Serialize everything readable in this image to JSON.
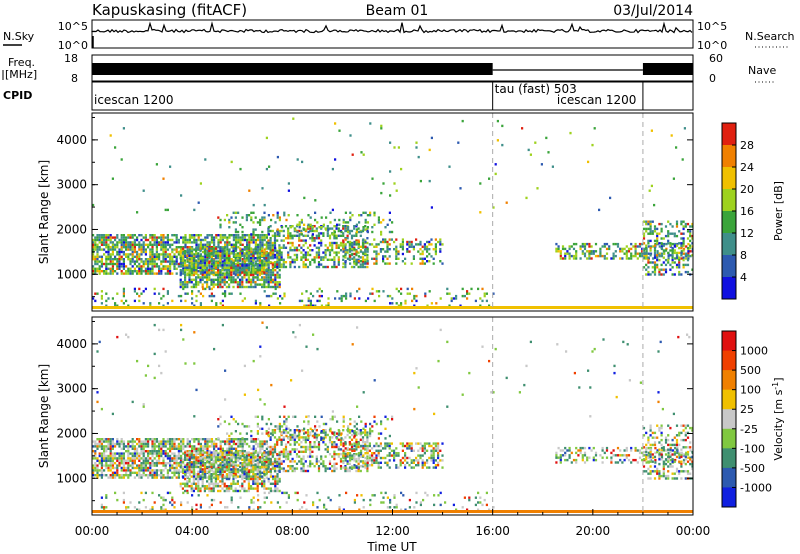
{
  "header": {
    "station": "Kapuskasing (fitACF)",
    "beam": "Beam 01",
    "date": "03/Jul/2014"
  },
  "status_panels": {
    "nsky_label": "N.Sky",
    "nsky_ticks": [
      "10^5",
      "10^0"
    ],
    "nsearch_label": "N.Search",
    "nsearch_ticks": [
      "10^5",
      "10^0"
    ],
    "freq_label_1": "Freq.",
    "freq_label_2": "[MHz]",
    "freq_ticks": [
      "18",
      "8"
    ],
    "nave_label": "Nave",
    "nave_ticks": [
      "60",
      "0"
    ],
    "cpid_label": "CPID",
    "cpid_segments": [
      {
        "label": "icescan 1200",
        "start_hour": 0,
        "end_hour": 16
      },
      {
        "label": "tau (fast) 503",
        "start_hour": 16,
        "end_hour": 22
      },
      {
        "label": "icescan 1200",
        "start_hour": 22,
        "end_hour": 24
      }
    ]
  },
  "chart_data": [
    {
      "type": "heatmap",
      "name": "power",
      "ylabel": "Slant Range [km]",
      "xlabel": "",
      "xlim": [
        0,
        24
      ],
      "ylim": [
        180,
        4600
      ],
      "yticks": [
        "1000",
        "2000",
        "3000",
        "4000"
      ],
      "colorbar": {
        "label": "Power [dB]",
        "ticks": [
          "4",
          "8",
          "12",
          "16",
          "20",
          "24",
          "28"
        ],
        "colors": [
          "#1010e0",
          "#2d5ab0",
          "#3f8f8a",
          "#3aa43a",
          "#9ed21e",
          "#f0c000",
          "#f08000",
          "#e02010"
        ]
      },
      "echo_regions": [
        {
          "t0": 0.0,
          "t1": 7.0,
          "r0": 1000,
          "r1": 1900,
          "density": 0.75
        },
        {
          "t0": 3.5,
          "t1": 7.5,
          "r0": 700,
          "r1": 1600,
          "density": 0.7
        },
        {
          "t0": 7.0,
          "t1": 11.0,
          "r0": 1150,
          "r1": 2100,
          "density": 0.5
        },
        {
          "t0": 10.0,
          "t1": 14.0,
          "r0": 1250,
          "r1": 1800,
          "density": 0.4
        },
        {
          "t0": 5.0,
          "t1": 12.0,
          "r0": 1900,
          "r1": 2400,
          "density": 0.2
        },
        {
          "t0": 0.0,
          "t1": 16.0,
          "r0": 300,
          "r1": 700,
          "density": 0.15
        },
        {
          "t0": 18.5,
          "t1": 24.0,
          "r0": 1350,
          "r1": 1700,
          "density": 0.45
        },
        {
          "t0": 22.0,
          "t1": 24.0,
          "r0": 1000,
          "r1": 2200,
          "density": 0.4
        },
        {
          "t0": 0.0,
          "t1": 24.0,
          "r0": 2400,
          "r1": 4500,
          "density": 0.01
        }
      ]
    },
    {
      "type": "heatmap",
      "name": "velocity",
      "ylabel": "Slant Range [km]",
      "xlabel": "Time UT",
      "xlim": [
        0,
        24
      ],
      "ylim": [
        180,
        4600
      ],
      "xticks": [
        "00:00",
        "04:00",
        "08:00",
        "12:00",
        "16:00",
        "20:00",
        "00:00"
      ],
      "yticks": [
        "1000",
        "2000",
        "3000",
        "4000"
      ],
      "colorbar": {
        "label": "Velocity [m s",
        "label_exponent": "-1",
        "label_close": "]",
        "ticks": [
          "1000",
          "500",
          "100",
          "25",
          "-25",
          "-100",
          "-500",
          "-1000"
        ],
        "colors": [
          "#1020e0",
          "#2d5ab0",
          "#3f8f70",
          "#80c840",
          "#c8c8c8",
          "#f0c000",
          "#f08000",
          "#f04000",
          "#e01010"
        ]
      },
      "echo_regions": [
        {
          "t0": 0.0,
          "t1": 7.0,
          "r0": 1000,
          "r1": 1900,
          "density": 0.7
        },
        {
          "t0": 3.5,
          "t1": 7.5,
          "r0": 700,
          "r1": 1600,
          "density": 0.6
        },
        {
          "t0": 7.0,
          "t1": 11.0,
          "r0": 1150,
          "r1": 2100,
          "density": 0.5
        },
        {
          "t0": 10.0,
          "t1": 14.0,
          "r0": 1250,
          "r1": 1800,
          "density": 0.45
        },
        {
          "t0": 5.0,
          "t1": 12.0,
          "r0": 1900,
          "r1": 2400,
          "density": 0.2
        },
        {
          "t0": 0.0,
          "t1": 16.0,
          "r0": 300,
          "r1": 700,
          "density": 0.12
        },
        {
          "t0": 18.5,
          "t1": 24.0,
          "r0": 1350,
          "r1": 1700,
          "density": 0.4
        },
        {
          "t0": 22.0,
          "t1": 24.0,
          "r0": 1000,
          "r1": 2200,
          "density": 0.35
        },
        {
          "t0": 0.0,
          "t1": 24.0,
          "r0": 2400,
          "r1": 4500,
          "density": 0.01
        }
      ]
    }
  ]
}
